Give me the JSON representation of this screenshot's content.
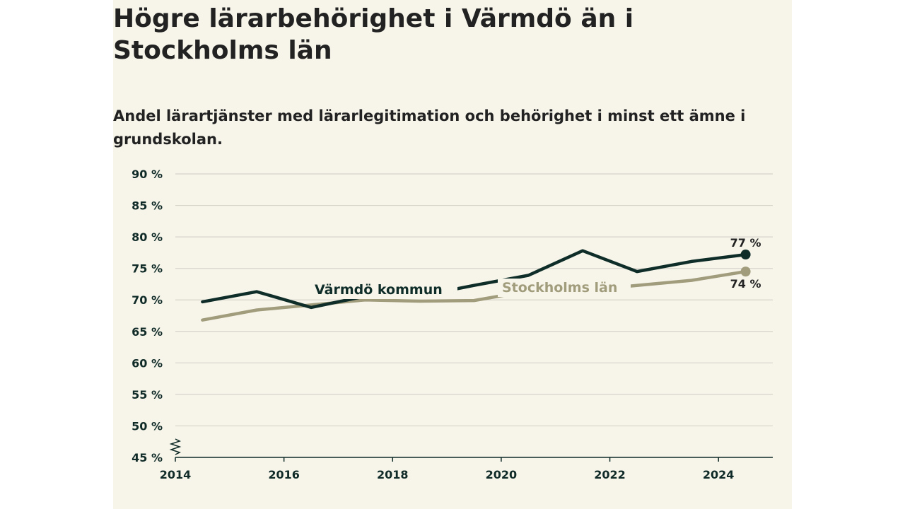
{
  "chart_data": {
    "type": "line",
    "title": "Högre lärarbehörighet i Värmdö än i Stockholms län",
    "subtitle": "Andel lärartjänster med lärarlegitimation och behörighet i minst ett ämne i grundskolan.",
    "x": [
      2014.5,
      2015.5,
      2016.5,
      2017.5,
      2018.5,
      2019.5,
      2020.5,
      2021.5,
      2022.5,
      2023.5,
      2024.5
    ],
    "xlim": [
      2014,
      2025
    ],
    "x_ticks": [
      2014,
      2016,
      2018,
      2020,
      2022,
      2024
    ],
    "x_tick_labels": [
      "2014",
      "2016",
      "2018",
      "2020",
      "2022",
      "2024"
    ],
    "ylim": [
      45,
      90
    ],
    "y_ticks": [
      45,
      50,
      55,
      60,
      65,
      70,
      75,
      80,
      85,
      90
    ],
    "y_tick_labels": [
      "45 %",
      "50 %",
      "55 %",
      "60 %",
      "65 %",
      "70 %",
      "75 %",
      "80 %",
      "85 %",
      "90 %"
    ],
    "grid": true,
    "axis_break": true,
    "series": [
      {
        "name": "Värmdö kommun",
        "color": "#0f2d28",
        "values": [
          69.7,
          71.3,
          68.8,
          70.6,
          70.6,
          72.3,
          73.9,
          77.8,
          74.5,
          76.1,
          77.2
        ],
        "end_label": "77 %"
      },
      {
        "name": "Stockholms län",
        "color": "#a09c7c",
        "values": [
          66.8,
          68.4,
          69.2,
          70.0,
          69.8,
          69.9,
          71.4,
          71.5,
          72.3,
          73.1,
          74.5
        ],
        "end_label": "74 %"
      }
    ]
  }
}
